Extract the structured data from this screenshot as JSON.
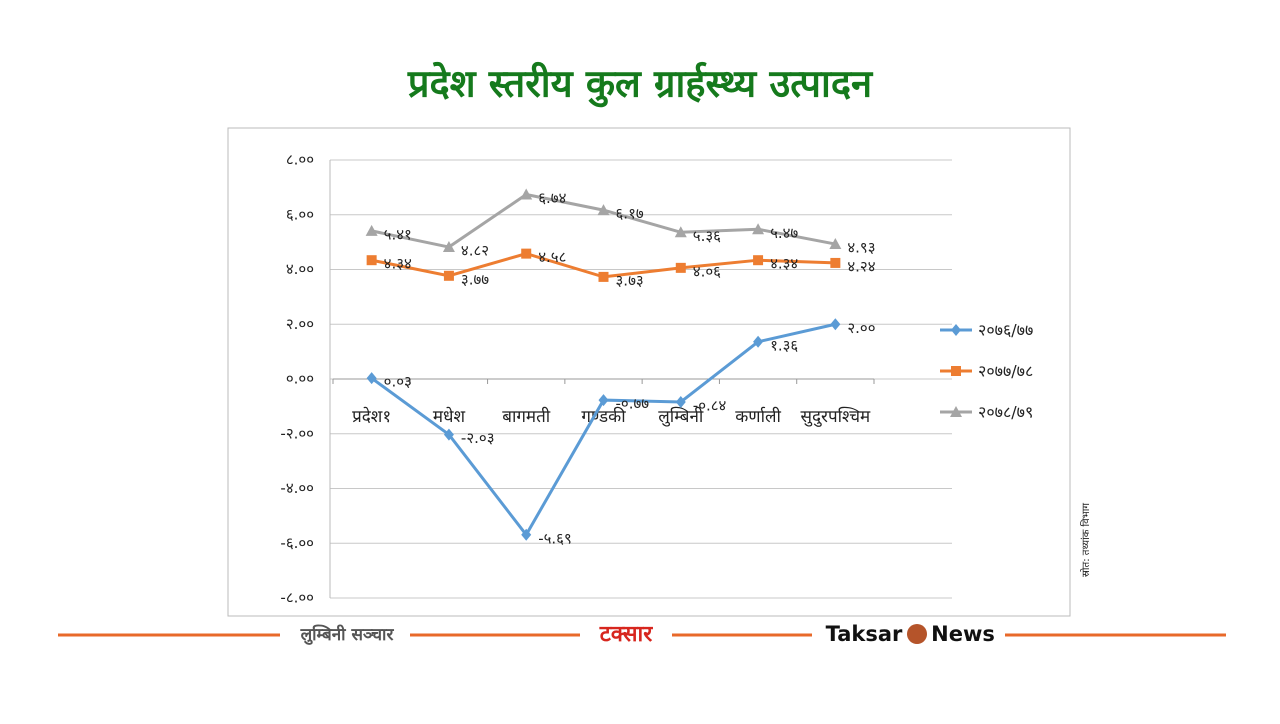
{
  "chart_data": {
    "type": "line",
    "title": "प्रदेश स्तरीय कुल ग्रार्हस्थ्य उत्पादन",
    "source": "स्रोत: तथ्यांक विभाग",
    "categories": [
      "प्रदेश१",
      "मधेश",
      "बागमती",
      "गण्डकी",
      "लुम्बिनी",
      "कर्णाली",
      "सुदुरपश्चिम"
    ],
    "series": [
      {
        "name": "२०७६/७७",
        "color": "#5b9bd5",
        "marker": "diamond",
        "values": [
          0.03,
          -2.03,
          -5.69,
          -0.77,
          -0.84,
          1.36,
          2.0
        ],
        "value_labels": [
          "०.०३",
          "-२.०३",
          "-५.६९",
          "-०.७७",
          "-०.८४",
          "१.३६",
          "२.००"
        ]
      },
      {
        "name": "२०७७/७८",
        "color": "#ed7d31",
        "marker": "square",
        "values": [
          4.34,
          3.77,
          4.58,
          3.73,
          4.06,
          4.34,
          4.24
        ],
        "value_labels": [
          "४.३४",
          "३.७७",
          "४.५८",
          "३.७३",
          "४.०६",
          "४.३४",
          "४.२४"
        ]
      },
      {
        "name": "२०७८/७९",
        "color": "#a5a5a5",
        "marker": "triangle",
        "values": [
          5.41,
          4.82,
          6.74,
          6.17,
          5.36,
          5.47,
          4.93
        ],
        "value_labels": [
          "५.४१",
          "४.८२",
          "६.७४",
          "६.१७",
          "५.३६",
          "५.४७",
          "४.९३"
        ]
      }
    ],
    "ylim": [
      -8,
      8
    ],
    "yticks": [
      {
        "value": 8,
        "label": "८.००"
      },
      {
        "value": 6,
        "label": "६.००"
      },
      {
        "value": 4,
        "label": "४.००"
      },
      {
        "value": 2,
        "label": "२.००"
      },
      {
        "value": 0,
        "label": "०.००"
      },
      {
        "value": -2,
        "label": "-२.००"
      },
      {
        "value": -4,
        "label": "-४.००"
      },
      {
        "value": -6,
        "label": "-६.००"
      },
      {
        "value": -8,
        "label": "-८.००"
      }
    ],
    "grid": true,
    "legend": "right"
  },
  "footer": {
    "brand1": "लुम्बिनी सञ्चार",
    "brand2": "टक्सार",
    "brand3a": "Taksar",
    "brand3b": "News"
  }
}
